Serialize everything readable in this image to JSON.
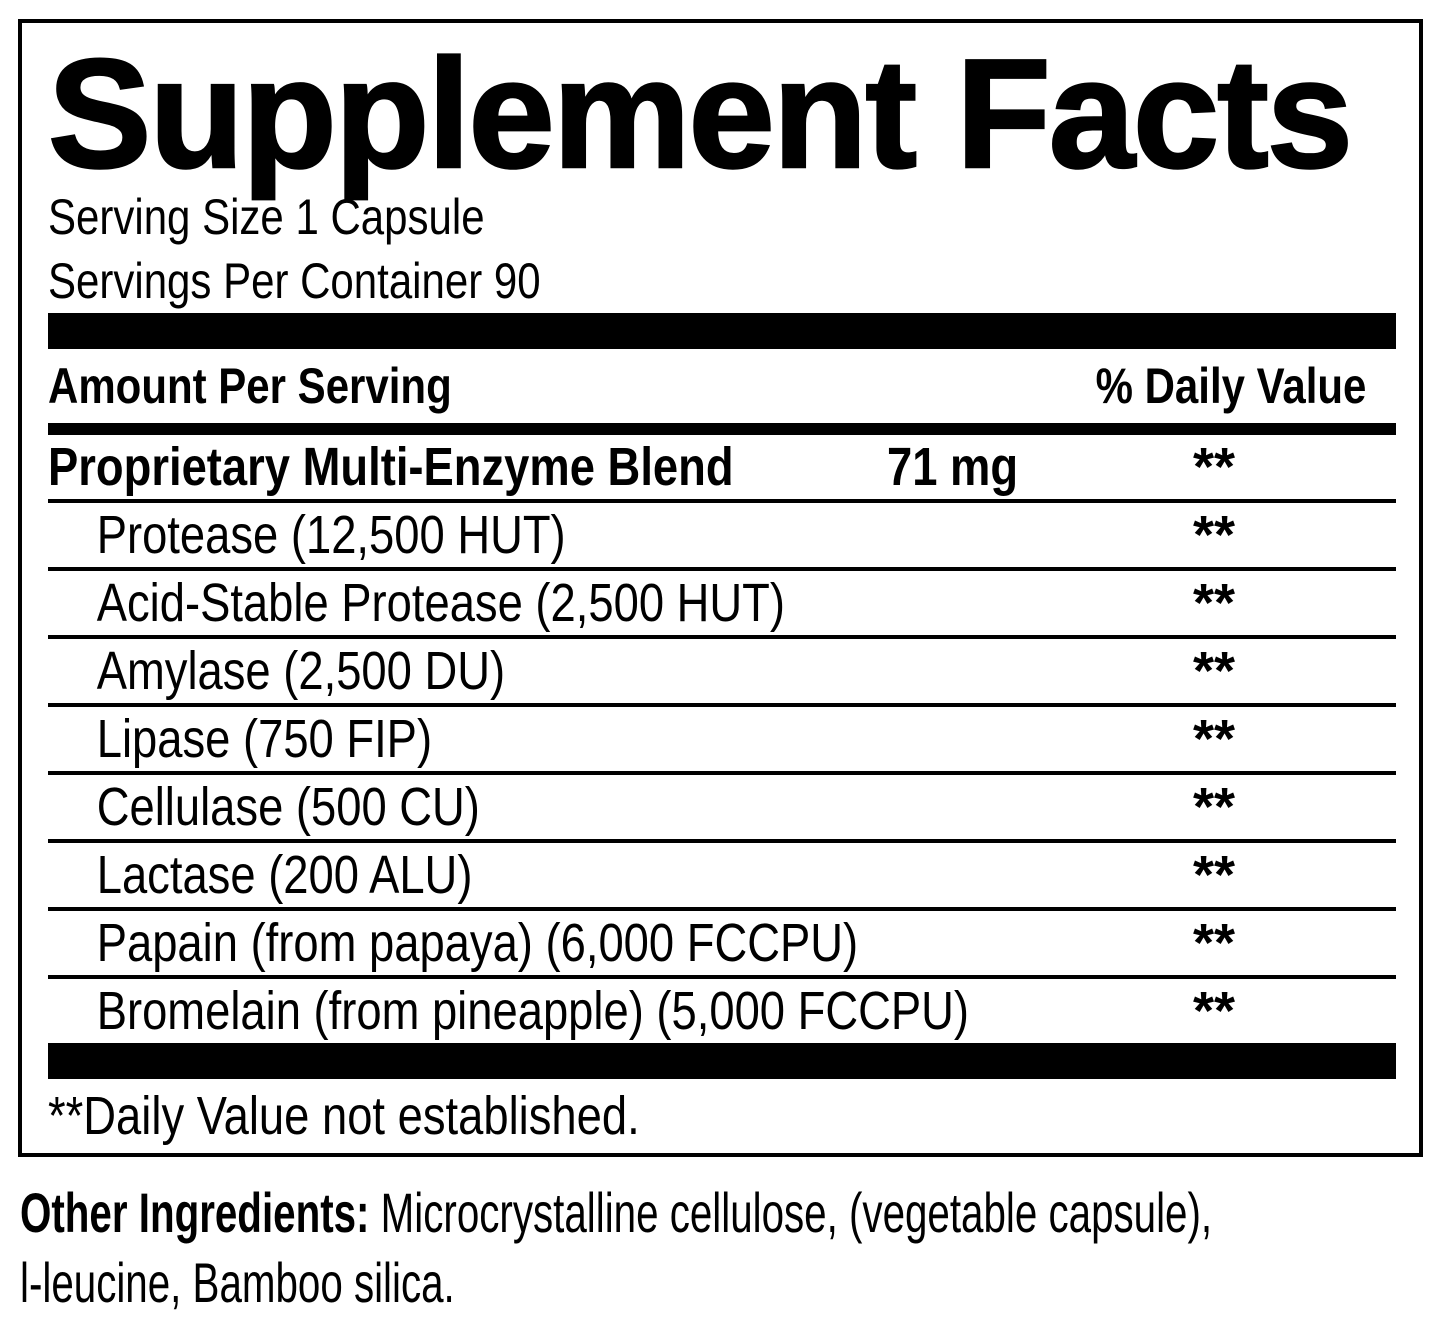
{
  "panel": {
    "title": "Supplement Facts",
    "serving_size": "Serving Size 1 Capsule",
    "servings_per_container": "Servings Per Container 90",
    "columns": {
      "amount": "Amount Per Serving",
      "daily_value": "% Daily Value"
    },
    "blend": {
      "name": "Proprietary Multi-Enzyme Blend",
      "amount": "71 mg",
      "daily_value": "**"
    },
    "ingredients": [
      {
        "name": "Protease (12,500 HUT)",
        "daily_value": "**"
      },
      {
        "name": "Acid-Stable Protease (2,500 HUT)",
        "daily_value": "**"
      },
      {
        "name": "Amylase (2,500 DU)",
        "daily_value": "**"
      },
      {
        "name": "Lipase (750 FIP)",
        "daily_value": "**"
      },
      {
        "name": "Cellulase (500 CU)",
        "daily_value": "**"
      },
      {
        "name": "Lactase (200 ALU)",
        "daily_value": "**"
      },
      {
        "name": "Papain (from papaya) (6,000 FCCPU)",
        "daily_value": "**"
      },
      {
        "name": "Bromelain (from pineapple) (5,000 FCCPU)",
        "daily_value": "**"
      }
    ],
    "footnote": "**Daily Value not established.",
    "other_ingredients": {
      "label": "Other Ingredients:",
      "line1_rest": " Microcrystalline cellulose, (vegetable capsule),",
      "line2": "l-leucine, Bamboo silica."
    },
    "colors": {
      "text": "#000000",
      "background": "#ffffff"
    }
  }
}
